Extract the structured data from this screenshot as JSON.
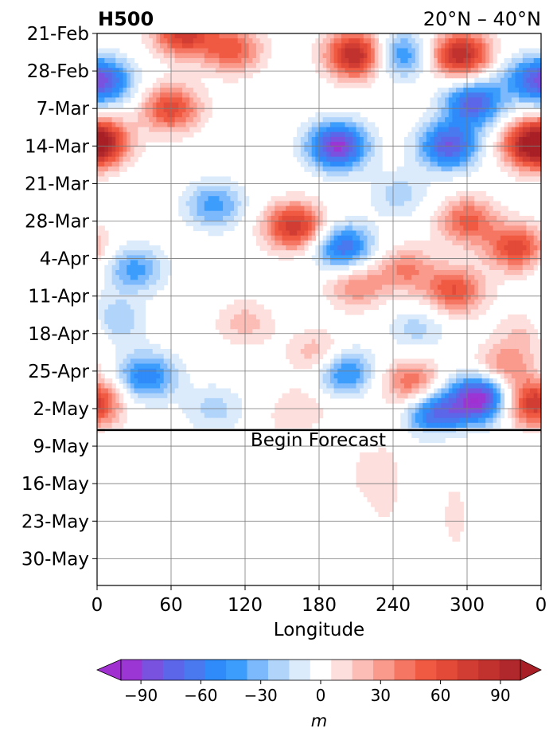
{
  "chart_data": {
    "type": "heatmap",
    "title_left": "H500",
    "title_right": "20°N – 40°N",
    "xlabel": "Longitude",
    "ylabel": "",
    "x_ticks": [
      "0",
      "60",
      "120",
      "180",
      "240",
      "300",
      "0"
    ],
    "x_tick_values": [
      0,
      60,
      120,
      180,
      240,
      300,
      360
    ],
    "xlim": [
      0,
      360
    ],
    "y_ticks": [
      "21-Feb",
      "28-Feb",
      "7-Mar",
      "14-Mar",
      "21-Mar",
      "28-Mar",
      "4-Apr",
      "11-Apr",
      "18-Apr",
      "25-Apr",
      "2-May",
      "9-May",
      "16-May",
      "23-May",
      "30-May"
    ],
    "y_tick_days": [
      0,
      7,
      14,
      21,
      28,
      35,
      42,
      49,
      56,
      63,
      70,
      77,
      84,
      91,
      98
    ],
    "ylim_days": [
      0,
      103
    ],
    "forecast_day": 74,
    "annotation": "Begin Forecast",
    "grid": true,
    "colorbar": {
      "label": "m",
      "tick_labels": [
        "−90",
        "−60",
        "−30",
        "0",
        "30",
        "60",
        "90"
      ],
      "tick_values": [
        -90,
        -60,
        -30,
        0,
        30,
        60,
        90
      ],
      "levels": [
        -100,
        -90,
        -80,
        -70,
        -60,
        -50,
        -40,
        -30,
        -20,
        -10,
        10,
        20,
        30,
        40,
        50,
        60,
        70,
        80,
        90,
        100
      ],
      "colors": [
        "#9b35d4",
        "#7a52e0",
        "#5c66e8",
        "#4a78ee",
        "#2f8bfa",
        "#3d9dfd",
        "#7cb9fc",
        "#b1d4fb",
        "#dcebfb",
        "#ffffff",
        "#fde0de",
        "#fcbdb6",
        "#f99a8c",
        "#f57763",
        "#f05a43",
        "#e34a38",
        "#d23d33",
        "#c1322e",
        "#b0282b"
      ],
      "under_color": "#a030d0",
      "over_color": "#a81f25"
    },
    "anomaly_features": [
      {
        "lon": 210,
        "day": 4,
        "value": 95
      },
      {
        "lon": 70,
        "day": 0,
        "value": 75
      },
      {
        "lon": 245,
        "day": 4,
        "value": -55
      },
      {
        "lon": 295,
        "day": 4,
        "value": 90
      },
      {
        "lon": 5,
        "day": 9,
        "value": -75
      },
      {
        "lon": 60,
        "day": 14,
        "value": 65
      },
      {
        "lon": 305,
        "day": 13,
        "value": -75
      },
      {
        "lon": 342,
        "day": 8,
        "value": -25
      },
      {
        "lon": 195,
        "day": 21,
        "value": -95
      },
      {
        "lon": 285,
        "day": 21,
        "value": -80
      },
      {
        "lon": 352,
        "day": 21,
        "value": 75
      },
      {
        "lon": 3,
        "day": 20,
        "value": 60
      },
      {
        "lon": 110,
        "day": 3,
        "value": 55
      },
      {
        "lon": 95,
        "day": 32,
        "value": -45
      },
      {
        "lon": 160,
        "day": 36,
        "value": 80
      },
      {
        "lon": 200,
        "day": 40,
        "value": -70
      },
      {
        "lon": 245,
        "day": 30,
        "value": -25
      },
      {
        "lon": 300,
        "day": 35,
        "value": 55
      },
      {
        "lon": 340,
        "day": 40,
        "value": 65
      },
      {
        "lon": 30,
        "day": 44,
        "value": -45
      },
      {
        "lon": 250,
        "day": 44,
        "value": 40
      },
      {
        "lon": 290,
        "day": 48,
        "value": 60
      },
      {
        "lon": 210,
        "day": 47,
        "value": 40
      },
      {
        "lon": 260,
        "day": 55,
        "value": -25
      },
      {
        "lon": 355,
        "day": 55,
        "value": 40
      },
      {
        "lon": 120,
        "day": 54,
        "value": 25
      },
      {
        "lon": 10,
        "day": 54,
        "value": -50
      },
      {
        "lon": 40,
        "day": 64,
        "value": -60
      },
      {
        "lon": 180,
        "day": 60,
        "value": 35
      },
      {
        "lon": 200,
        "day": 63,
        "value": -60
      },
      {
        "lon": 255,
        "day": 65,
        "value": 50
      },
      {
        "lon": 330,
        "day": 62,
        "value": 40
      },
      {
        "lon": 310,
        "day": 68,
        "value": -98
      },
      {
        "lon": 275,
        "day": 71,
        "value": -70
      },
      {
        "lon": 355,
        "day": 69,
        "value": 80
      },
      {
        "lon": 95,
        "day": 70,
        "value": -25
      },
      {
        "lon": 165,
        "day": 70,
        "value": 20
      },
      {
        "lon": 215,
        "day": 82,
        "value": 20
      },
      {
        "lon": 235,
        "day": 84,
        "value": 30
      },
      {
        "lon": 260,
        "day": 85,
        "value": -15
      },
      {
        "lon": 290,
        "day": 90,
        "value": 25
      },
      {
        "lon": 315,
        "day": 82,
        "value": -15
      },
      {
        "lon": 340,
        "day": 85,
        "value": 15
      },
      {
        "lon": 140,
        "day": 82,
        "value": 15
      }
    ]
  }
}
